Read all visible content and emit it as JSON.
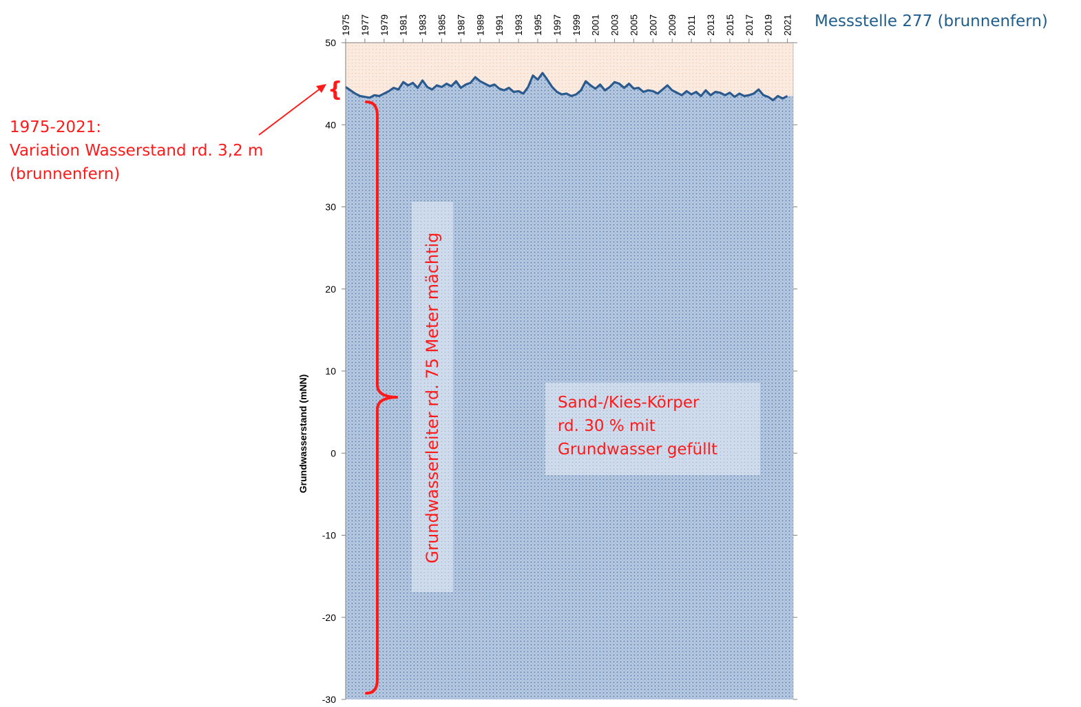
{
  "chart_data": {
    "type": "area",
    "title": "",
    "xlabel": "",
    "ylabel": "Grundwasserstand (mNN)",
    "xlim": [
      1975,
      2021
    ],
    "ylim": [
      -30,
      50
    ],
    "y_ticks": [
      -30,
      -20,
      -10,
      0,
      10,
      20,
      30,
      40,
      50
    ],
    "x_ticks": [
      1975,
      1977,
      1979,
      1981,
      1983,
      1985,
      1987,
      1989,
      1991,
      1993,
      1995,
      1997,
      1999,
      2001,
      2003,
      2005,
      2007,
      2009,
      2011,
      2013,
      2015,
      2017,
      2019,
      2021
    ],
    "x_tick_orientation": "vertical",
    "grid": false,
    "colors": {
      "water_fill": "#8aa6c9",
      "air_fill": "#f9e3d3",
      "line": "#2a5a8e",
      "annotation": "#ff1a1a",
      "series_label": "#1f5d8c"
    },
    "series": [
      {
        "name": "Messstelle 277 (brunnenfern)",
        "x": [
          1975.0,
          1975.5,
          1976.0,
          1976.5,
          1977.0,
          1977.5,
          1978.0,
          1978.5,
          1979.0,
          1979.5,
          1980.0,
          1980.5,
          1981.0,
          1981.5,
          1982.0,
          1982.5,
          1983.0,
          1983.5,
          1984.0,
          1984.5,
          1985.0,
          1985.5,
          1986.0,
          1986.5,
          1987.0,
          1987.5,
          1988.0,
          1988.5,
          1989.0,
          1989.5,
          1990.0,
          1990.5,
          1991.0,
          1991.5,
          1992.0,
          1992.5,
          1993.0,
          1993.5,
          1994.0,
          1994.5,
          1995.0,
          1995.5,
          1996.0,
          1996.5,
          1997.0,
          1997.5,
          1998.0,
          1998.5,
          1999.0,
          1999.5,
          2000.0,
          2000.5,
          2001.0,
          2001.5,
          2002.0,
          2002.5,
          2003.0,
          2003.5,
          2004.0,
          2004.5,
          2005.0,
          2005.5,
          2006.0,
          2006.5,
          2007.0,
          2007.5,
          2008.0,
          2008.5,
          2009.0,
          2009.5,
          2010.0,
          2010.5,
          2011.0,
          2011.5,
          2012.0,
          2012.5,
          2013.0,
          2013.5,
          2014.0,
          2014.5,
          2015.0,
          2015.5,
          2016.0,
          2016.5,
          2017.0,
          2017.5,
          2018.0,
          2018.5,
          2019.0,
          2019.5,
          2020.0,
          2020.5,
          2021.0
        ],
        "y": [
          44.6,
          44.2,
          43.8,
          43.5,
          43.4,
          43.3,
          43.6,
          43.5,
          43.8,
          44.1,
          44.5,
          44.3,
          45.2,
          44.8,
          45.1,
          44.5,
          45.4,
          44.6,
          44.3,
          44.8,
          44.6,
          45.0,
          44.7,
          45.3,
          44.5,
          44.9,
          45.1,
          45.8,
          45.3,
          45.0,
          44.7,
          44.9,
          44.4,
          44.2,
          44.5,
          44.0,
          44.1,
          43.8,
          44.6,
          46.0,
          45.5,
          46.3,
          45.5,
          44.6,
          44.0,
          43.7,
          43.8,
          43.5,
          43.7,
          44.2,
          45.3,
          44.8,
          44.4,
          44.9,
          44.2,
          44.6,
          45.2,
          45.0,
          44.5,
          45.0,
          44.4,
          44.5,
          44.0,
          44.2,
          44.1,
          43.8,
          44.3,
          44.8,
          44.2,
          43.9,
          43.6,
          44.1,
          43.7,
          44.0,
          43.5,
          44.2,
          43.6,
          44.0,
          43.9,
          43.6,
          43.9,
          43.4,
          43.8,
          43.5,
          43.6,
          43.8,
          44.3,
          43.6,
          43.4,
          43.0,
          43.5,
          43.2,
          43.5
        ]
      }
    ],
    "annotations": [
      {
        "id": "variation",
        "lines": [
          "1975-2021:",
          "Variation Wasserstand rd. 3,2 m",
          "(brunnenfern)"
        ]
      },
      {
        "id": "aquifer",
        "text": "Grundwasserleiter rd. 75 Meter mächtig"
      },
      {
        "id": "sand",
        "lines": [
          "Sand-/Kies-Körper",
          "rd. 30 % mit",
          "Grundwasser gefüllt"
        ]
      }
    ]
  }
}
